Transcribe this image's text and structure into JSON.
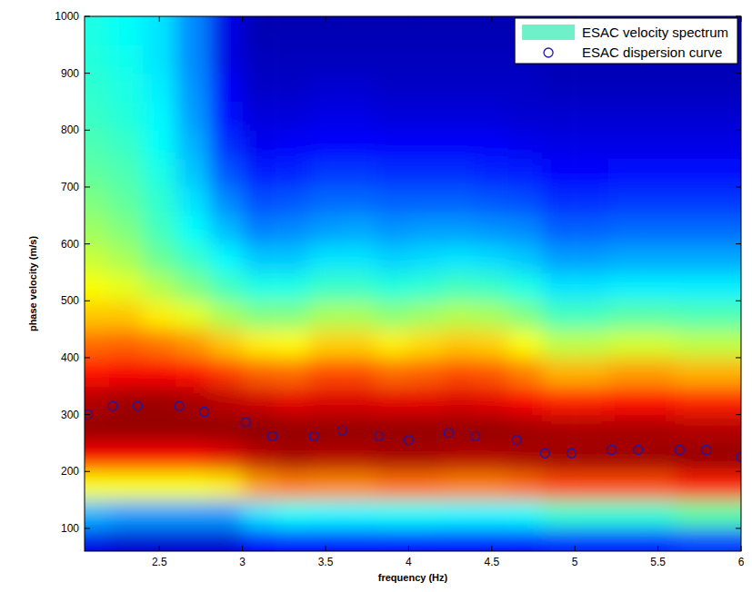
{
  "chart_data": {
    "type": "heatmap",
    "x_label": "frequency (Hz)",
    "y_label": "phase velocity (m/s)",
    "xlim": [
      2.05,
      6.0
    ],
    "ylim": [
      60,
      1000
    ],
    "xticks": [
      2.5,
      3,
      3.5,
      4,
      4.5,
      5,
      5.5,
      6
    ],
    "yticks": [
      100,
      200,
      300,
      400,
      500,
      600,
      700,
      800,
      900,
      1000
    ],
    "legend": "upper right",
    "heatmap": {
      "name": "ESAC velocity spectrum",
      "color": "#6ff0c8",
      "zlim": [
        0,
        1
      ],
      "x": [
        2.1,
        2.3,
        2.5,
        2.7,
        2.9,
        3.1,
        3.3,
        3.5,
        3.7,
        3.9,
        4.1,
        4.3,
        4.5,
        4.7,
        4.9,
        5.1,
        5.3,
        5.5,
        5.7,
        5.9
      ],
      "y": [
        75,
        125,
        175,
        225,
        275,
        325,
        375,
        425,
        475,
        525,
        575,
        625,
        675,
        725,
        775,
        825,
        875,
        925,
        975
      ],
      "z": [
        [
          0.1,
          0.3,
          0.62,
          0.88,
          0.98,
          0.95,
          0.86,
          0.77,
          0.68,
          0.62,
          0.57,
          0.53,
          0.5,
          0.47,
          0.45,
          0.43,
          0.42,
          0.41,
          0.4
        ],
        [
          0.08,
          0.28,
          0.62,
          0.88,
          0.98,
          0.97,
          0.88,
          0.78,
          0.68,
          0.6,
          0.54,
          0.5,
          0.47,
          0.45,
          0.43,
          0.41,
          0.4,
          0.39,
          0.38
        ],
        [
          0.08,
          0.28,
          0.62,
          0.88,
          0.98,
          0.97,
          0.88,
          0.76,
          0.64,
          0.55,
          0.48,
          0.44,
          0.42,
          0.4,
          0.38,
          0.37,
          0.36,
          0.35,
          0.35
        ],
        [
          0.08,
          0.28,
          0.62,
          0.88,
          0.98,
          0.96,
          0.86,
          0.73,
          0.6,
          0.5,
          0.43,
          0.38,
          0.35,
          0.32,
          0.3,
          0.28,
          0.27,
          0.26,
          0.26
        ],
        [
          0.08,
          0.28,
          0.64,
          0.9,
          0.98,
          0.94,
          0.82,
          0.68,
          0.54,
          0.44,
          0.37,
          0.31,
          0.26,
          0.21,
          0.17,
          0.14,
          0.12,
          0.1,
          0.1
        ],
        [
          0.12,
          0.35,
          0.72,
          0.94,
          0.99,
          0.92,
          0.78,
          0.64,
          0.5,
          0.4,
          0.32,
          0.25,
          0.2,
          0.15,
          0.11,
          0.09,
          0.07,
          0.06,
          0.05
        ],
        [
          0.14,
          0.38,
          0.75,
          0.96,
          0.98,
          0.9,
          0.77,
          0.63,
          0.5,
          0.4,
          0.32,
          0.26,
          0.21,
          0.16,
          0.12,
          0.09,
          0.07,
          0.06,
          0.05
        ],
        [
          0.14,
          0.37,
          0.74,
          0.95,
          0.98,
          0.91,
          0.8,
          0.67,
          0.54,
          0.43,
          0.35,
          0.28,
          0.23,
          0.18,
          0.13,
          0.1,
          0.08,
          0.06,
          0.05
        ],
        [
          0.14,
          0.37,
          0.74,
          0.95,
          0.98,
          0.91,
          0.8,
          0.67,
          0.54,
          0.43,
          0.35,
          0.29,
          0.23,
          0.18,
          0.13,
          0.1,
          0.08,
          0.06,
          0.05
        ],
        [
          0.14,
          0.38,
          0.76,
          0.96,
          0.98,
          0.9,
          0.77,
          0.64,
          0.51,
          0.41,
          0.33,
          0.27,
          0.22,
          0.17,
          0.12,
          0.09,
          0.07,
          0.06,
          0.05
        ],
        [
          0.14,
          0.38,
          0.76,
          0.96,
          0.98,
          0.9,
          0.78,
          0.66,
          0.53,
          0.42,
          0.34,
          0.28,
          0.22,
          0.17,
          0.12,
          0.09,
          0.07,
          0.06,
          0.05
        ],
        [
          0.14,
          0.37,
          0.75,
          0.95,
          0.98,
          0.91,
          0.8,
          0.68,
          0.55,
          0.44,
          0.35,
          0.28,
          0.22,
          0.17,
          0.12,
          0.09,
          0.07,
          0.06,
          0.05
        ],
        [
          0.14,
          0.37,
          0.75,
          0.95,
          0.98,
          0.9,
          0.79,
          0.67,
          0.54,
          0.43,
          0.34,
          0.27,
          0.21,
          0.16,
          0.12,
          0.09,
          0.07,
          0.06,
          0.05
        ],
        [
          0.14,
          0.38,
          0.77,
          0.96,
          0.97,
          0.88,
          0.75,
          0.62,
          0.5,
          0.4,
          0.32,
          0.26,
          0.2,
          0.15,
          0.11,
          0.08,
          0.07,
          0.06,
          0.05
        ],
        [
          0.16,
          0.42,
          0.8,
          0.97,
          0.96,
          0.85,
          0.7,
          0.56,
          0.44,
          0.35,
          0.28,
          0.22,
          0.17,
          0.13,
          0.1,
          0.08,
          0.06,
          0.05,
          0.05
        ],
        [
          0.16,
          0.42,
          0.8,
          0.97,
          0.96,
          0.85,
          0.7,
          0.56,
          0.44,
          0.35,
          0.28,
          0.22,
          0.17,
          0.13,
          0.1,
          0.08,
          0.06,
          0.05,
          0.05
        ],
        [
          0.16,
          0.42,
          0.8,
          0.97,
          0.96,
          0.86,
          0.72,
          0.58,
          0.46,
          0.36,
          0.29,
          0.23,
          0.18,
          0.14,
          0.1,
          0.08,
          0.06,
          0.05,
          0.05
        ],
        [
          0.16,
          0.42,
          0.8,
          0.97,
          0.96,
          0.86,
          0.72,
          0.58,
          0.46,
          0.36,
          0.29,
          0.23,
          0.18,
          0.14,
          0.1,
          0.08,
          0.06,
          0.05,
          0.05
        ],
        [
          0.18,
          0.46,
          0.84,
          0.98,
          0.95,
          0.84,
          0.7,
          0.56,
          0.45,
          0.36,
          0.29,
          0.23,
          0.18,
          0.14,
          0.1,
          0.08,
          0.06,
          0.05,
          0.05
        ],
        [
          0.18,
          0.46,
          0.84,
          0.98,
          0.95,
          0.84,
          0.7,
          0.56,
          0.45,
          0.36,
          0.29,
          0.23,
          0.18,
          0.14,
          0.1,
          0.08,
          0.06,
          0.05,
          0.05
        ]
      ]
    },
    "series": [
      {
        "name": "ESAC dispersion curve",
        "type": "scatter",
        "color": "#1a1aa8",
        "marker": "circle",
        "x": [
          2.07,
          2.22,
          2.37,
          2.62,
          2.77,
          3.02,
          3.18,
          3.43,
          3.6,
          3.82,
          4.0,
          4.24,
          4.4,
          4.65,
          4.82,
          4.98,
          5.22,
          5.38,
          5.63,
          5.79,
          6.0
        ],
        "values": [
          300,
          315,
          315,
          315,
          305,
          287,
          262,
          262,
          272,
          262,
          255,
          268,
          262,
          255,
          232,
          232,
          238,
          238,
          238,
          238,
          225
        ]
      }
    ]
  }
}
